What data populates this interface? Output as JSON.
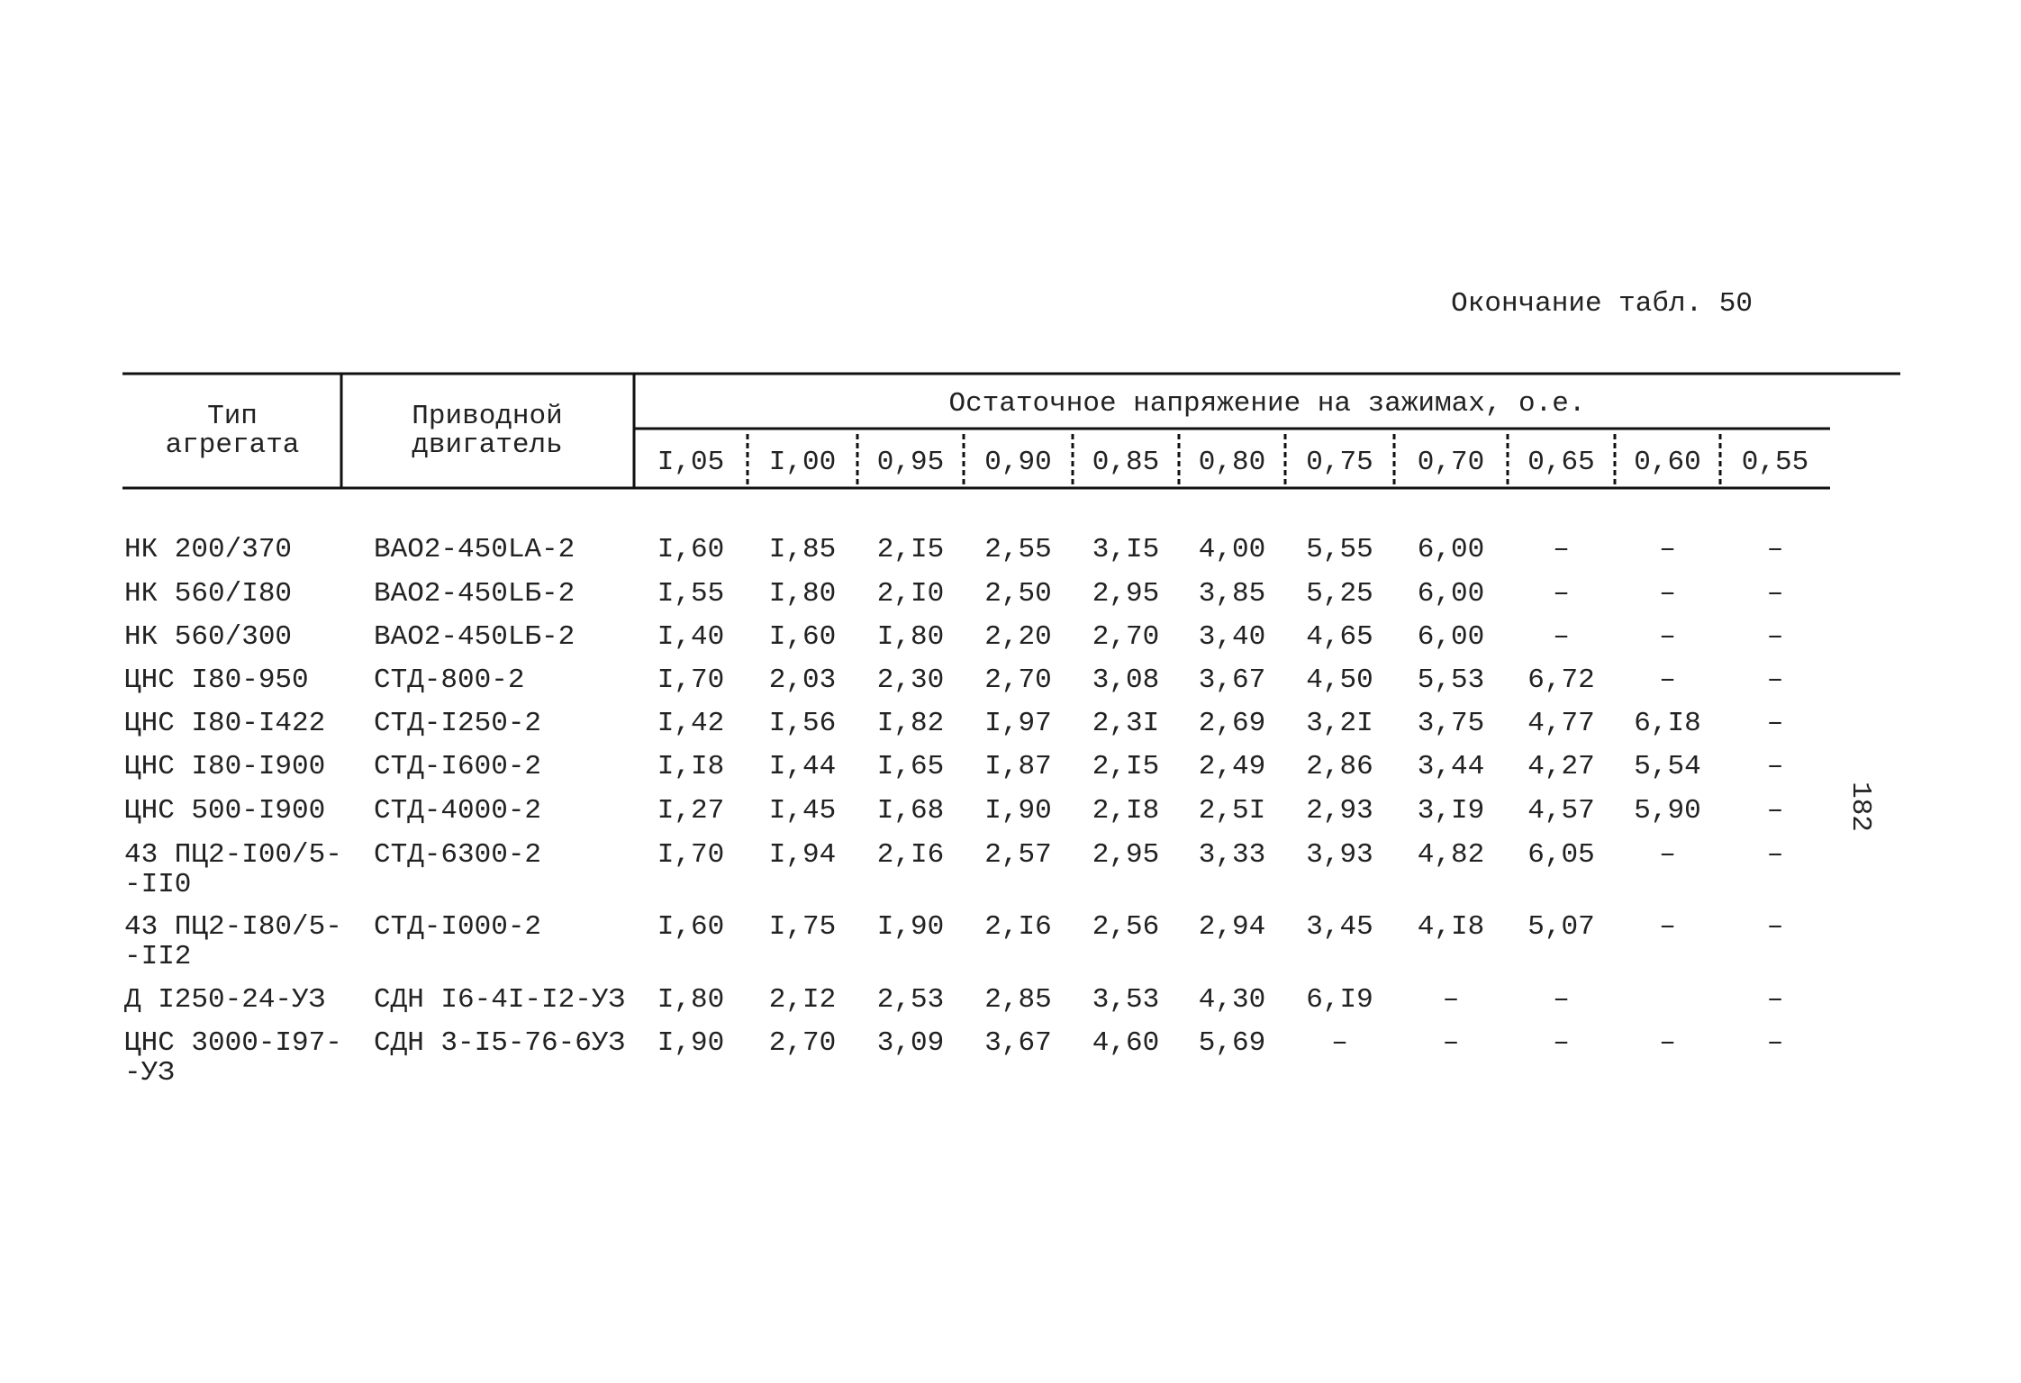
{
  "caption": "Окончание табл. 50",
  "page_number": "182",
  "table": {
    "header": {
      "type": "Тип агрегата",
      "motor": "Приводной двигатель",
      "group": "Остаточное напряжение на зажимах, о.е.",
      "voltages": [
        "I,05",
        "I,00",
        "0,95",
        "0,90",
        "0,85",
        "0,80",
        "0,75",
        "0,70",
        "0,65",
        "0,60",
        "0,55"
      ]
    },
    "rows": [
      {
        "type": [
          "НК 200/370"
        ],
        "motor": "ВАО2-450LA-2",
        "values": [
          "I,60",
          "I,85",
          "2,I5",
          "2,55",
          "3,I5",
          "4,00",
          "5,55",
          "6,00",
          "–",
          "–",
          "–"
        ]
      },
      {
        "type": [
          "НК 560/I80"
        ],
        "motor": "ВАО2-450LБ-2",
        "values": [
          "I,55",
          "I,80",
          "2,I0",
          "2,50",
          "2,95",
          "3,85",
          "5,25",
          "6,00",
          "–",
          "–",
          "–"
        ]
      },
      {
        "type": [
          "НК 560/300"
        ],
        "motor": "ВАО2-450LБ-2",
        "values": [
          "I,40",
          "I,60",
          "I,80",
          "2,20",
          "2,70",
          "3,40",
          "4,65",
          "6,00",
          "–",
          "–",
          "–"
        ]
      },
      {
        "type": [
          "ЦНС I80-950"
        ],
        "motor": "СТД-800-2",
        "values": [
          "I,70",
          "2,03",
          "2,30",
          "2,70",
          "3,08",
          "3,67",
          "4,50",
          "5,53",
          "6,72",
          "–",
          "–"
        ]
      },
      {
        "type": [
          "ЦНС I80-I422"
        ],
        "motor": "СТД-I250-2",
        "values": [
          "I,42",
          "I,56",
          "I,82",
          "I,97",
          "2,3I",
          "2,69",
          "3,2I",
          "3,75",
          "4,77",
          "6,I8",
          "–"
        ]
      },
      {
        "type": [
          "ЦНС I80-I900"
        ],
        "motor": "СТД-I600-2",
        "values": [
          "I,I8",
          "I,44",
          "I,65",
          "I,87",
          "2,I5",
          "2,49",
          "2,86",
          "3,44",
          "4,27",
          "5,54",
          "–"
        ]
      },
      {
        "type": [
          "ЦНС 500-I900"
        ],
        "motor": "СТД-4000-2",
        "values": [
          "I,27",
          "I,45",
          "I,68",
          "I,90",
          "2,I8",
          "2,5I",
          "2,93",
          "3,I9",
          "4,57",
          "5,90",
          "–"
        ]
      },
      {
        "type": [
          "43 ПЦ2-I00/5-",
          "-II0"
        ],
        "motor": "СТД-6300-2",
        "values": [
          "I,70",
          "I,94",
          "2,I6",
          "2,57",
          "2,95",
          "3,33",
          "3,93",
          "4,82",
          "6,05",
          "–",
          "–"
        ]
      },
      {
        "type": [
          "43 ПЦ2-I80/5-",
          "-II2"
        ],
        "motor": "СТД-I000-2",
        "values": [
          "I,60",
          "I,75",
          "I,90",
          "2,I6",
          "2,56",
          "2,94",
          "3,45",
          "4,I8",
          "5,07",
          "–",
          "–"
        ]
      },
      {
        "type": [
          "Д I250-24-УЗ"
        ],
        "motor": "СДН I6-4I-I2-УЗ",
        "values": [
          "I,80",
          "2,I2",
          "2,53",
          "2,85",
          "3,53",
          "4,30",
          "6,I9",
          "–",
          "–",
          null,
          "–"
        ]
      },
      {
        "type": [
          "ЦНС 3000-I97-",
          "-УЗ"
        ],
        "motor": "СДН 3-I5-76-6УЗ",
        "values": [
          "I,90",
          "2,70",
          "3,09",
          "3,67",
          "4,60",
          "5,69",
          "–",
          "–",
          "–",
          "–",
          "–"
        ]
      }
    ]
  }
}
